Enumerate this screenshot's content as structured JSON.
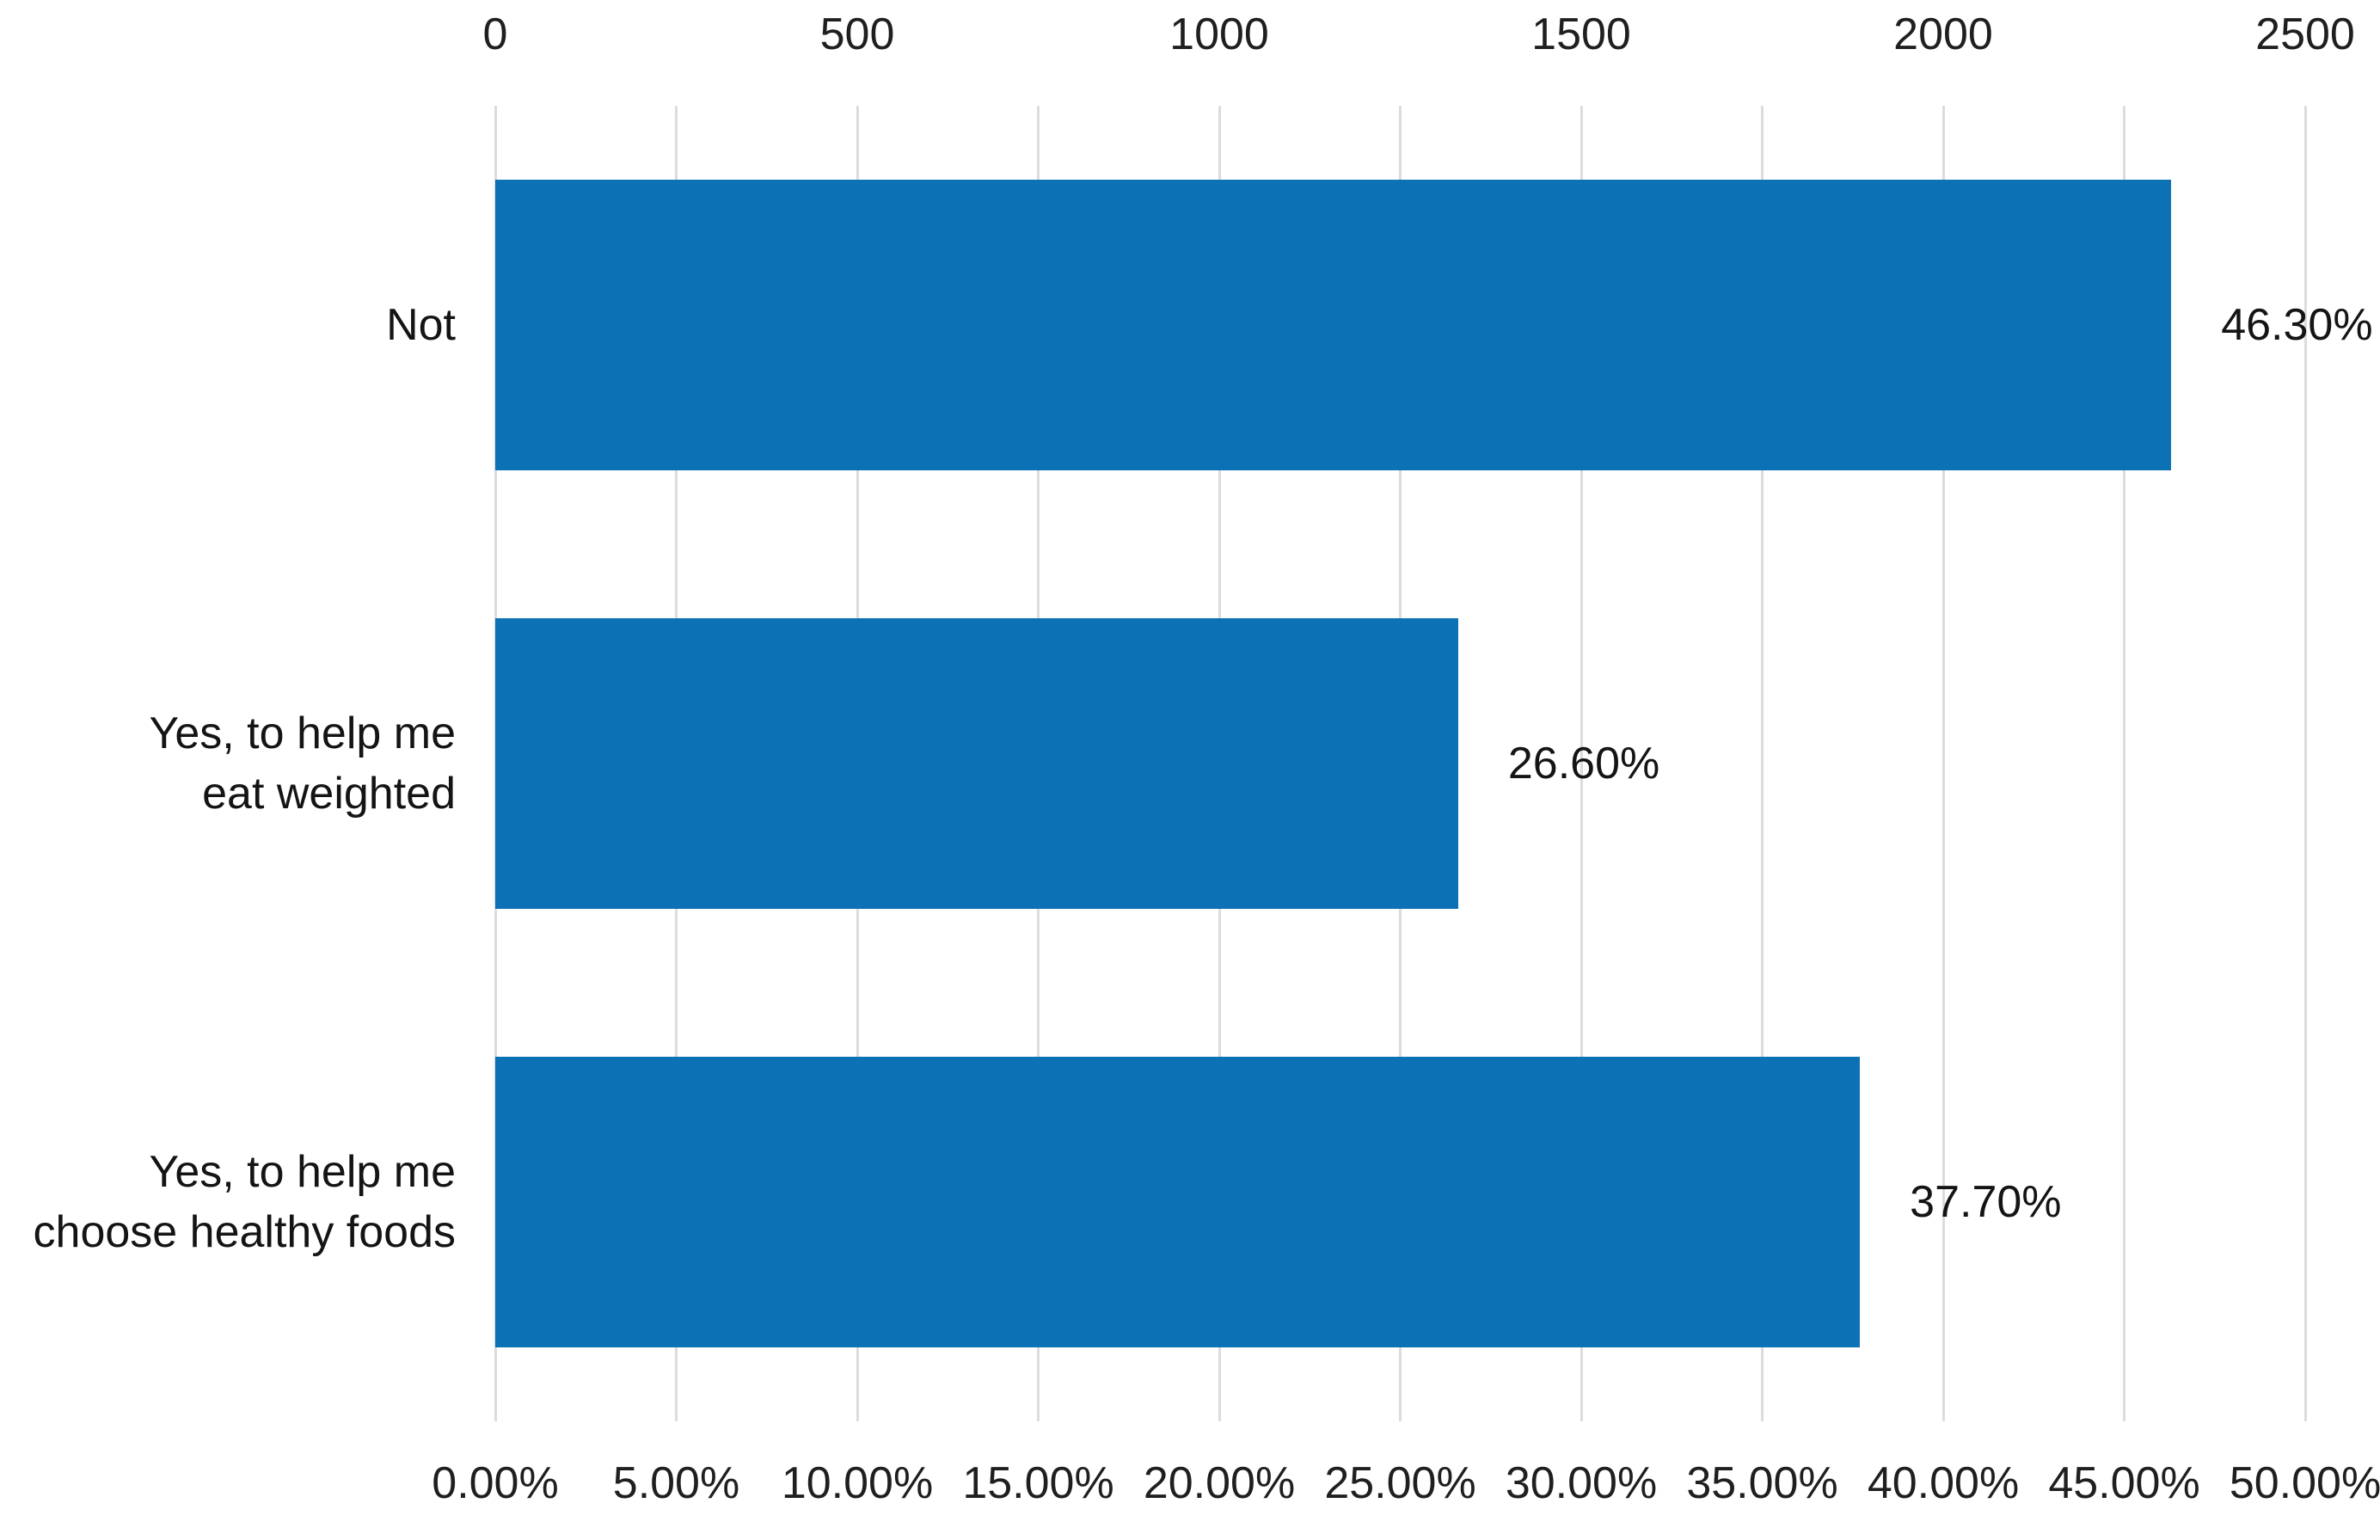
{
  "chart_data": {
    "type": "bar",
    "orientation": "horizontal",
    "title": "",
    "categories": [
      "Not",
      "Yes, to help me\neat weighted",
      "Yes, to help me\nchoose healthy foods"
    ],
    "values": [
      46.3,
      26.6,
      37.7
    ],
    "value_labels": [
      "46.30%",
      "26.60%",
      "37.70%"
    ],
    "series_name": "",
    "top_axis": {
      "ticks": [
        "0",
        "500",
        "1000",
        "1500",
        "2000",
        "2500"
      ],
      "range": [
        0,
        2500
      ]
    },
    "bottom_axis": {
      "ticks": [
        "0.00%",
        "5.00%",
        "10.00%",
        "15.00%",
        "20.00%",
        "25.00%",
        "30.00%",
        "35.00%",
        "40.00%",
        "45.00%",
        "50.00%"
      ],
      "range": [
        0,
        50
      ]
    },
    "xlim": [
      0,
      50
    ],
    "grid": true,
    "legend": false,
    "bar_color": "#0d72b5",
    "gridline_color": "#dcdce0",
    "text_color": "#141414",
    "background_color": "#ffffff"
  }
}
